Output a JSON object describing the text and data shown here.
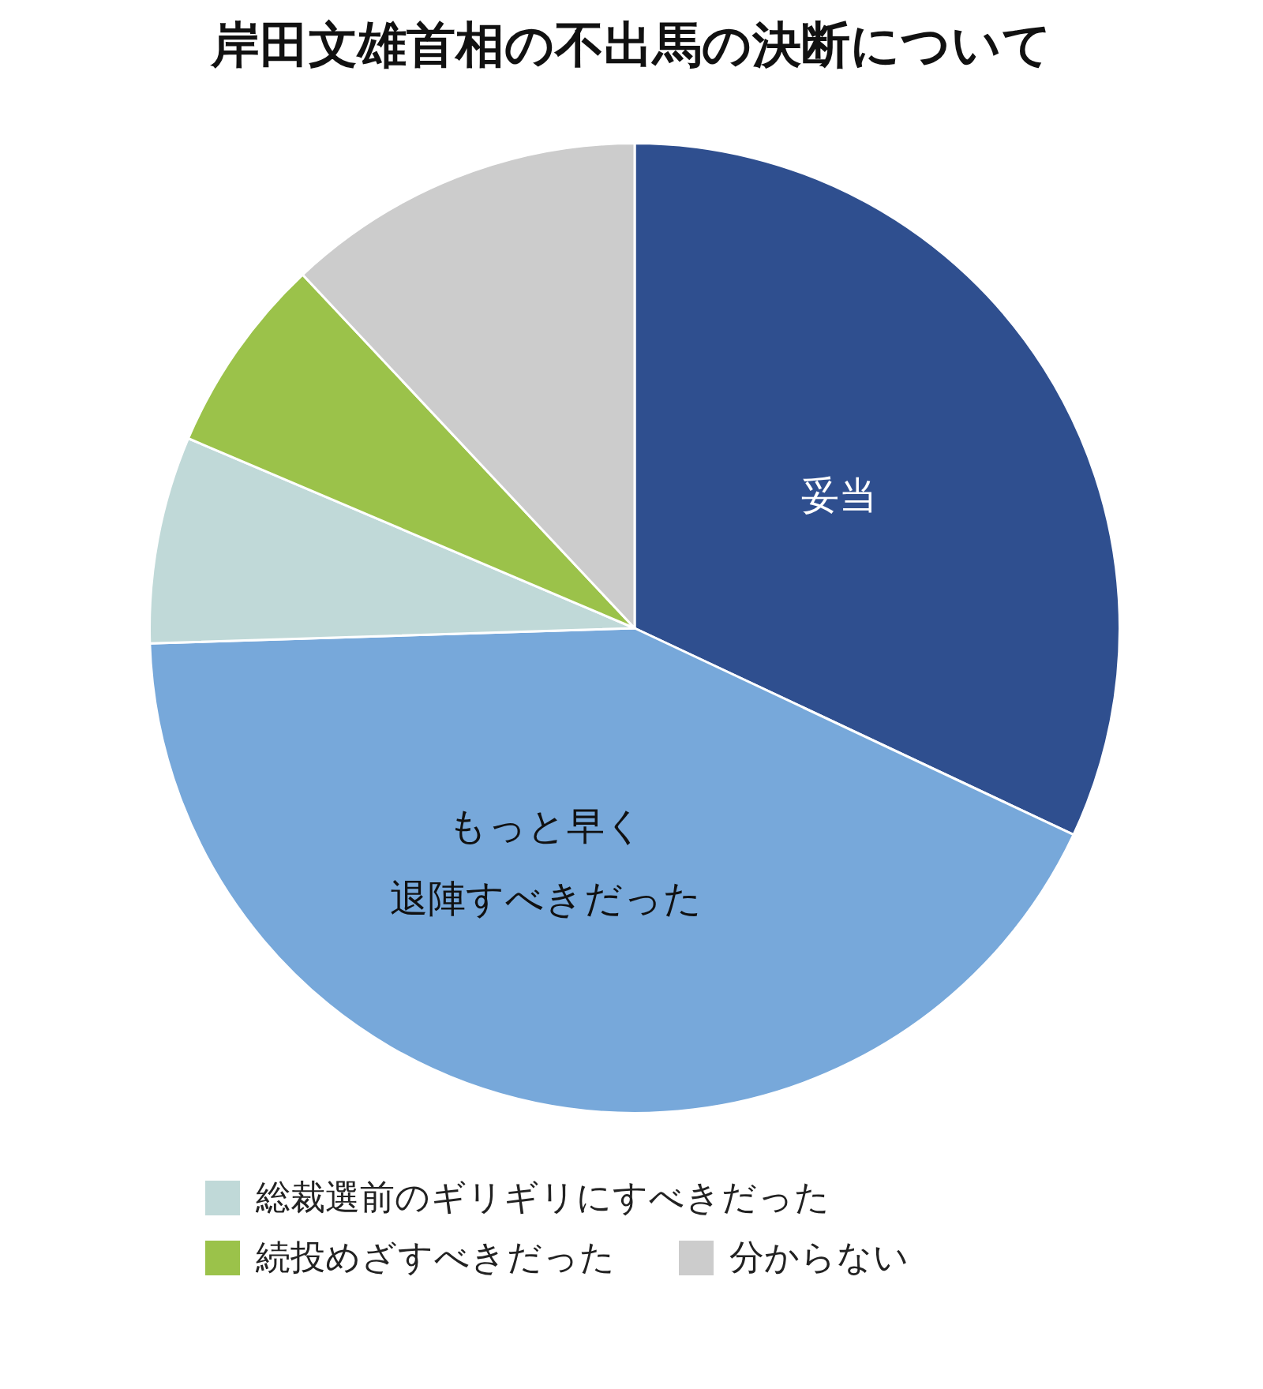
{
  "chart_data": {
    "type": "pie",
    "title": "岸田文雄首相の不出馬の決断について",
    "categories": [
      "妥当",
      "もっと早く退陣すべきだった",
      "総裁選前のギリギリにすべきだった",
      "続投めざすべきだった",
      "分からない"
    ],
    "values": [
      32,
      42.5,
      6.9,
      6.6,
      12
    ],
    "colors": [
      "#2f4f8f",
      "#77a8da",
      "#c0d9d8",
      "#9bc24a",
      "#cccccc"
    ],
    "legend": "bottom"
  }
}
